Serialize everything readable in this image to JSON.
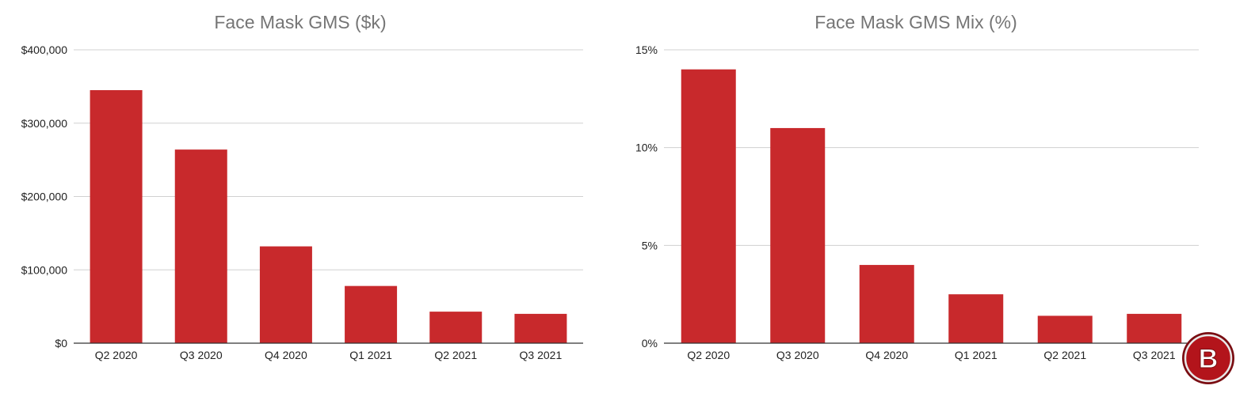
{
  "chart_data": [
    {
      "type": "bar",
      "title": "Face Mask GMS ($k)",
      "categories": [
        "Q2 2020",
        "Q3 2020",
        "Q4 2020",
        "Q1 2021",
        "Q2 2021",
        "Q3 2021"
      ],
      "values": [
        345000,
        264000,
        132000,
        78000,
        43000,
        40000
      ],
      "ylim": [
        0,
        400000
      ],
      "yticks": [
        0,
        100000,
        200000,
        300000,
        400000
      ],
      "ytick_labels": [
        "$0",
        "$100,000",
        "$200,000",
        "$300,000",
        "$400,000"
      ],
      "bar_color": "#c8292c",
      "grid": true
    },
    {
      "type": "bar",
      "title": "Face Mask GMS Mix (%)",
      "categories": [
        "Q2 2020",
        "Q3 2020",
        "Q4 2020",
        "Q1 2021",
        "Q2 2021",
        "Q3 2021"
      ],
      "values": [
        14.0,
        11.0,
        4.0,
        2.5,
        1.4,
        1.5
      ],
      "ylim": [
        0,
        15
      ],
      "yticks": [
        0,
        5,
        10,
        15
      ],
      "ytick_labels": [
        "0%",
        "5%",
        "10%",
        "15%"
      ],
      "bar_color": "#c8292c",
      "grid": true
    }
  ],
  "logo": {
    "letter": "B",
    "icon": "b-logo-icon",
    "color": "#b3141b"
  }
}
